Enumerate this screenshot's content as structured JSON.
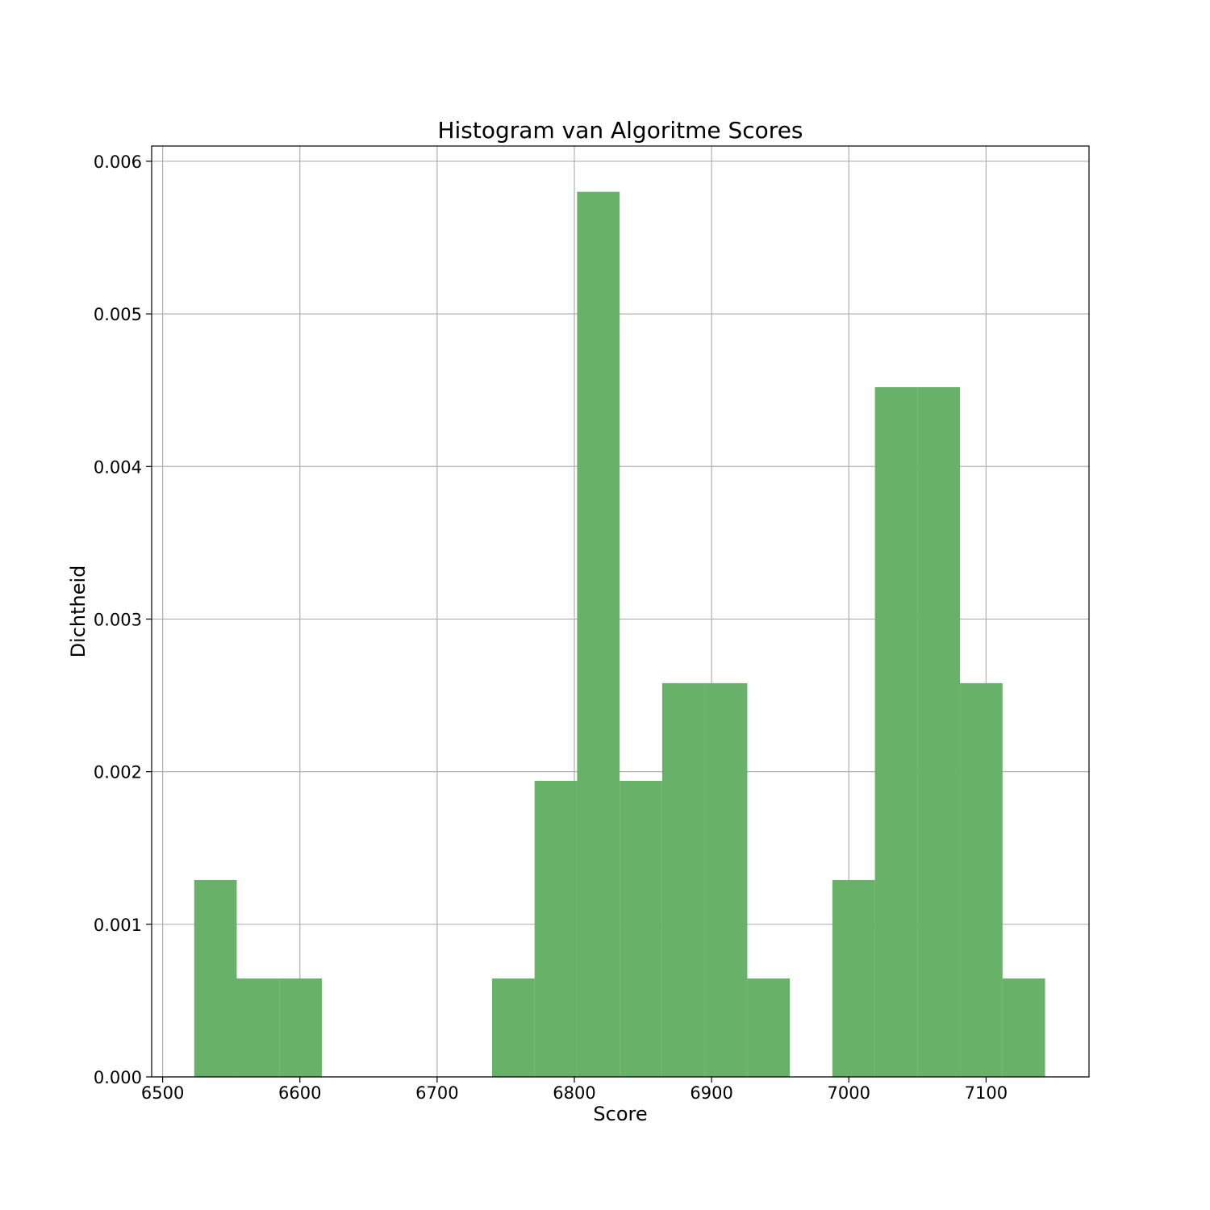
{
  "chart_data": {
    "type": "bar",
    "title": "Histogram van Algoritme Scores",
    "xlabel": "Score",
    "ylabel": "Dichtheid",
    "xlim": [
      6492,
      7175
    ],
    "ylim": [
      0,
      0.0061
    ],
    "grid": true,
    "bar_color": "#68b168",
    "xticks": [
      6500,
      6600,
      6700,
      6800,
      6900,
      7000,
      7100
    ],
    "xtick_labels": [
      "6500",
      "6600",
      "6700",
      "6800",
      "6900",
      "7000",
      "7100"
    ],
    "yticks": [
      0,
      0.001,
      0.002,
      0.003,
      0.004,
      0.005,
      0.006
    ],
    "ytick_labels": [
      "0.000",
      "0.001",
      "0.002",
      "0.003",
      "0.004",
      "0.005",
      "0.006"
    ],
    "bins": [
      {
        "x0": 6523,
        "x1": 6554,
        "density": 0.00129
      },
      {
        "x0": 6554,
        "x1": 6585,
        "density": 0.000645
      },
      {
        "x0": 6585,
        "x1": 6616,
        "density": 0.000645
      },
      {
        "x0": 6616,
        "x1": 6647,
        "density": 0
      },
      {
        "x0": 6647,
        "x1": 6678,
        "density": 0
      },
      {
        "x0": 6678,
        "x1": 6709,
        "density": 0
      },
      {
        "x0": 6709,
        "x1": 6740,
        "density": 0
      },
      {
        "x0": 6740,
        "x1": 6771,
        "density": 0.000645
      },
      {
        "x0": 6771,
        "x1": 6802,
        "density": 0.00194
      },
      {
        "x0": 6802,
        "x1": 6833,
        "density": 0.0058
      },
      {
        "x0": 6833,
        "x1": 6864,
        "density": 0.00194
      },
      {
        "x0": 6864,
        "x1": 6895,
        "density": 0.00258
      },
      {
        "x0": 6895,
        "x1": 6926,
        "density": 0.00258
      },
      {
        "x0": 6926,
        "x1": 6957,
        "density": 0.000645
      },
      {
        "x0": 6957,
        "x1": 6988,
        "density": 0
      },
      {
        "x0": 6988,
        "x1": 7019,
        "density": 0.00129
      },
      {
        "x0": 7019,
        "x1": 7050,
        "density": 0.00452
      },
      {
        "x0": 7050,
        "x1": 7081,
        "density": 0.00452
      },
      {
        "x0": 7081,
        "x1": 7112,
        "density": 0.00258
      },
      {
        "x0": 7112,
        "x1": 7143,
        "density": 0.000645
      }
    ]
  }
}
